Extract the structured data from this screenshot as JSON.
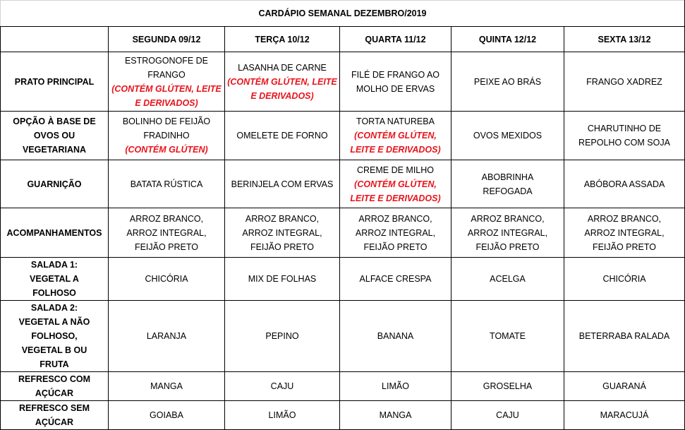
{
  "title": "CARDÁPIO SEMANAL DEZEMBRO/2019",
  "days": [
    "SEGUNDA  09/12",
    "TERÇA 10/12",
    "QUARTA 11/12",
    "QUINTA 12/12",
    "SEXTA 13/12"
  ],
  "note_color": "#e8141c",
  "rows": [
    {
      "label": "PRATO PRINCIPAL",
      "cells": [
        {
          "text": "ESTROGONOFE DE FRANGO",
          "note": "(CONTÉM GLÚTEN, LEITE E DERIVADOS)"
        },
        {
          "text": "LASANHA DE CARNE",
          "note": "(CONTÉM GLÚTEN, LEITE E DERIVADOS)"
        },
        {
          "text": "FILÉ DE FRANGO AO MOLHO DE ERVAS"
        },
        {
          "text": "PEIXE AO BRÁS"
        },
        {
          "text": "FRANGO XADREZ"
        }
      ]
    },
    {
      "label": "OPÇÃO À BASE DE OVOS OU VEGETARIANA",
      "cells": [
        {
          "text": "BOLINHO DE FEIJÃO FRADINHO",
          "note": "(CONTÉM GLÚTEN)"
        },
        {
          "text": "OMELETE DE FORNO"
        },
        {
          "text": "TORTA NATUREBA",
          "note": "(CONTÉM GLÚTEN, LEITE E DERIVADOS)"
        },
        {
          "text": "OVOS MEXIDOS"
        },
        {
          "text": "CHARUTINHO DE REPOLHO COM SOJA"
        }
      ]
    },
    {
      "label": "GUARNIÇÃO",
      "cells": [
        {
          "text": "BATATA RÚSTICA"
        },
        {
          "text": "BERINJELA COM ERVAS"
        },
        {
          "text": "CREME DE MILHO",
          "note": "(CONTÉM GLÚTEN, LEITE E DERIVADOS)"
        },
        {
          "text": "ABOBRINHA REFOGADA"
        },
        {
          "text": "ABÓBORA ASSADA"
        }
      ]
    },
    {
      "label": "ACOMPANHAMENTOS",
      "cells": [
        {
          "text": "ARROZ BRANCO, ARROZ INTEGRAL, FEIJÃO PRETO"
        },
        {
          "text": "ARROZ BRANCO, ARROZ INTEGRAL, FEIJÃO PRETO"
        },
        {
          "text": "ARROZ BRANCO, ARROZ INTEGRAL, FEIJÃO PRETO"
        },
        {
          "text": "ARROZ BRANCO, ARROZ INTEGRAL, FEIJÃO PRETO"
        },
        {
          "text": "ARROZ BRANCO, ARROZ INTEGRAL, FEIJÃO PRETO"
        }
      ]
    },
    {
      "label": "SALADA 1: VEGETAL A FOLHOSO",
      "cells": [
        {
          "text": "CHICÓRIA"
        },
        {
          "text": "MIX DE FOLHAS"
        },
        {
          "text": "ALFACE  CRESPA"
        },
        {
          "text": "ACELGA"
        },
        {
          "text": "CHICÓRIA"
        }
      ]
    },
    {
      "label": "SALADA 2: VEGETAL A NÃO FOLHOSO, VEGETAL B OU FRUTA",
      "cells": [
        {
          "text": "LARANJA"
        },
        {
          "text": "PEPINO"
        },
        {
          "text": "BANANA"
        },
        {
          "text": "TOMATE"
        },
        {
          "text": "BETERRABA RALADA"
        }
      ]
    },
    {
      "label": "REFRESCO COM AÇÚCAR",
      "cells": [
        {
          "text": "MANGA"
        },
        {
          "text": "CAJU"
        },
        {
          "text": "LIMÃO"
        },
        {
          "text": "GROSELHA"
        },
        {
          "text": "GUARANÁ"
        }
      ]
    },
    {
      "label": "REFRESCO SEM AÇÚCAR",
      "cells": [
        {
          "text": "GOIABA"
        },
        {
          "text": "LIMÃO"
        },
        {
          "text": "MANGA"
        },
        {
          "text": "CAJU"
        },
        {
          "text": "MARACUJÁ"
        }
      ]
    }
  ]
}
